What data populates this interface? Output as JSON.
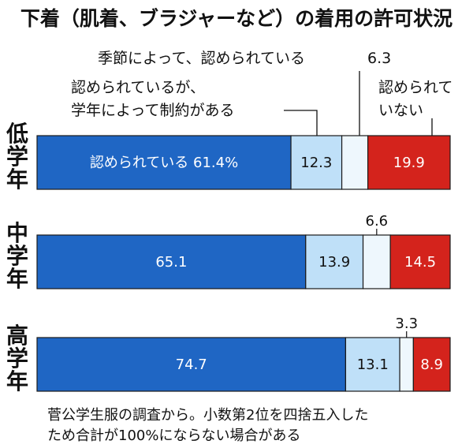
{
  "chart_data": {
    "type": "bar",
    "orientation": "horizontal",
    "stacked": true,
    "title": "下着（肌着、ブラジャーなど）の着用の許可状況",
    "categories": [
      "低学年",
      "中学年",
      "高学年"
    ],
    "series": [
      {
        "name": "認められている",
        "values": [
          61.4,
          65.1,
          74.7
        ],
        "labels": [
          "認められている 61.4%",
          "65.1",
          "74.7"
        ],
        "color": "#1f66c4",
        "text_color": "#ffffff"
      },
      {
        "name": "認められているが、学年によって制約がある",
        "values": [
          12.3,
          13.9,
          13.1
        ],
        "labels": [
          "12.3",
          "13.9",
          "13.1"
        ],
        "color": "#bfe0f8",
        "text_color": "#111111"
      },
      {
        "name": "季節によって、認められている",
        "values": [
          6.3,
          6.6,
          3.3
        ],
        "labels": [
          "6.3",
          "6.6",
          "3.3"
        ],
        "color": "#eef7fd",
        "text_color": "#111111"
      },
      {
        "name": "認められていない",
        "values": [
          19.9,
          14.5,
          8.9
        ],
        "labels": [
          "19.9",
          "14.5",
          "8.9"
        ],
        "color": "#d4231c",
        "text_color": "#ffffff"
      }
    ],
    "legend": {
      "seasonal": "季節によって、認められている",
      "seasonal_value": "6.3",
      "restricted_line1": "認められているが、",
      "restricted_line2": "学年によって制約がある",
      "not_line1": "認められて",
      "not_line2": "いない"
    },
    "note_line1": "菅公学生服の調査から。小数第2位を四捨五入した",
    "note_line2": "ため合計が100%にならない場合がある",
    "xlim": [
      0,
      100
    ],
    "grid": false
  }
}
